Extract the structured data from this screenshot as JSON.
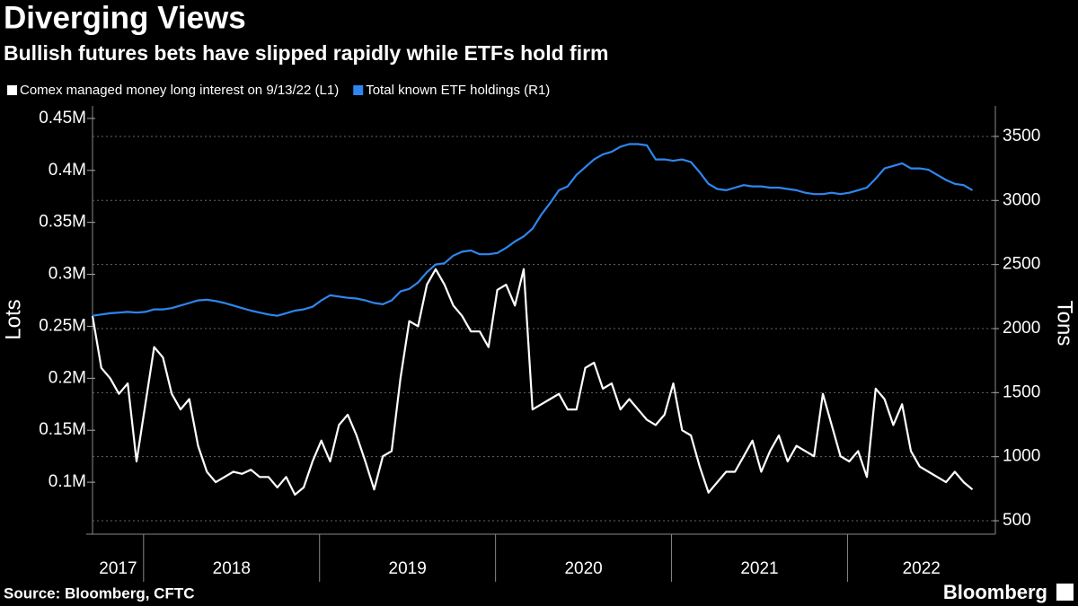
{
  "chart_data": {
    "type": "line",
    "title": "Diverging Views",
    "subtitle": "Bullish futures bets have slipped rapidly while ETFs hold firm",
    "ylabel": "Lots",
    "y2label": "Tons",
    "source": "Source: Bloomberg, CFTC",
    "brand": "Bloomberg",
    "x": [
      2017.71,
      2017.76,
      2017.81,
      2017.86,
      2017.91,
      2017.96,
      2018.01,
      2018.06,
      2018.11,
      2018.16,
      2018.21,
      2018.26,
      2018.31,
      2018.36,
      2018.41,
      2018.46,
      2018.51,
      2018.56,
      2018.61,
      2018.66,
      2018.71,
      2018.76,
      2018.81,
      2018.86,
      2018.91,
      2018.96,
      2019.01,
      2019.06,
      2019.11,
      2019.16,
      2019.21,
      2019.26,
      2019.31,
      2019.36,
      2019.41,
      2019.46,
      2019.51,
      2019.56,
      2019.61,
      2019.66,
      2019.71,
      2019.76,
      2019.81,
      2019.86,
      2019.91,
      2019.96,
      2020.01,
      2020.06,
      2020.11,
      2020.16,
      2020.21,
      2020.26,
      2020.31,
      2020.36,
      2020.41,
      2020.46,
      2020.51,
      2020.56,
      2020.61,
      2020.66,
      2020.71,
      2020.76,
      2020.81,
      2020.86,
      2020.91,
      2020.96,
      2021.01,
      2021.06,
      2021.11,
      2021.16,
      2021.21,
      2021.26,
      2021.31,
      2021.36,
      2021.41,
      2021.46,
      2021.51,
      2021.56,
      2021.61,
      2021.66,
      2021.71,
      2021.76,
      2021.81,
      2021.86,
      2021.91,
      2021.96,
      2022.01,
      2022.06,
      2022.11,
      2022.16,
      2022.21,
      2022.26,
      2022.31,
      2022.36,
      2022.41,
      2022.46,
      2022.51,
      2022.56,
      2022.61,
      2022.66,
      2022.71
    ],
    "xlim": [
      2017.71,
      2022.84
    ],
    "xticks": [
      2018,
      2019,
      2020,
      2021,
      2022
    ],
    "year_labels": [
      2017,
      2018,
      2019,
      2020,
      2021,
      2022
    ],
    "ylim": [
      50000,
      462000
    ],
    "yticks": [
      {
        "value": 100000,
        "label": "0.1M"
      },
      {
        "value": 150000,
        "label": "0.15M"
      },
      {
        "value": 200000,
        "label": "0.2M"
      },
      {
        "value": 250000,
        "label": "0.25M"
      },
      {
        "value": 300000,
        "label": "0.3M"
      },
      {
        "value": 350000,
        "label": "0.35M"
      },
      {
        "value": 400000,
        "label": "0.4M"
      },
      {
        "value": 450000,
        "label": "0.45M"
      }
    ],
    "y2lim": [
      395,
      3738
    ],
    "y2ticks": [
      500,
      1000,
      1500,
      2000,
      2500,
      3000,
      3500
    ],
    "grid": "y2",
    "legend": "top-left",
    "series": [
      {
        "name": "Comex managed money long interest on 9/13/22 (L1)",
        "color": "#ffffff",
        "axis": "y",
        "values": [
          260000,
          210000,
          200000,
          185000,
          195000,
          120000,
          175000,
          230000,
          220000,
          185000,
          170000,
          180000,
          135000,
          110000,
          100000,
          105000,
          110000,
          108000,
          112000,
          105000,
          105000,
          95000,
          105000,
          88000,
          95000,
          120000,
          140000,
          120000,
          155000,
          165000,
          145000,
          120000,
          93000,
          125000,
          130000,
          200000,
          255000,
          250000,
          290000,
          305000,
          290000,
          270000,
          260000,
          245000,
          245000,
          230000,
          285000,
          290000,
          270000,
          305000,
          170000,
          175000,
          180000,
          185000,
          170000,
          170000,
          210000,
          215000,
          190000,
          195000,
          170000,
          180000,
          170000,
          160000,
          155000,
          165000,
          195000,
          150000,
          145000,
          115000,
          90000,
          100000,
          110000,
          110000,
          125000,
          140000,
          110000,
          130000,
          145000,
          120000,
          135000,
          130000,
          125000,
          185000,
          155000,
          125000,
          120000,
          130000,
          105000,
          190000,
          180000,
          155000,
          175000,
          130000,
          115000,
          110000,
          105000,
          100000,
          110000,
          100000,
          93000
        ]
      },
      {
        "name": "Total known ETF holdings (R1)",
        "color": "#2f86ee",
        "axis": "y2",
        "values": [
          2100,
          2110,
          2120,
          2125,
          2130,
          2125,
          2130,
          2150,
          2150,
          2160,
          2180,
          2200,
          2220,
          2225,
          2215,
          2200,
          2180,
          2160,
          2140,
          2125,
          2110,
          2100,
          2120,
          2140,
          2150,
          2170,
          2220,
          2260,
          2250,
          2240,
          2235,
          2220,
          2200,
          2190,
          2220,
          2290,
          2310,
          2360,
          2440,
          2500,
          2510,
          2570,
          2600,
          2610,
          2580,
          2580,
          2590,
          2630,
          2680,
          2720,
          2780,
          2890,
          2980,
          3080,
          3110,
          3200,
          3260,
          3320,
          3360,
          3380,
          3420,
          3440,
          3440,
          3430,
          3320,
          3320,
          3310,
          3320,
          3300,
          3220,
          3130,
          3090,
          3080,
          3100,
          3120,
          3110,
          3110,
          3100,
          3100,
          3090,
          3080,
          3060,
          3050,
          3050,
          3060,
          3050,
          3060,
          3080,
          3100,
          3170,
          3250,
          3270,
          3290,
          3250,
          3250,
          3240,
          3200,
          3160,
          3130,
          3120,
          3080
        ]
      }
    ]
  }
}
